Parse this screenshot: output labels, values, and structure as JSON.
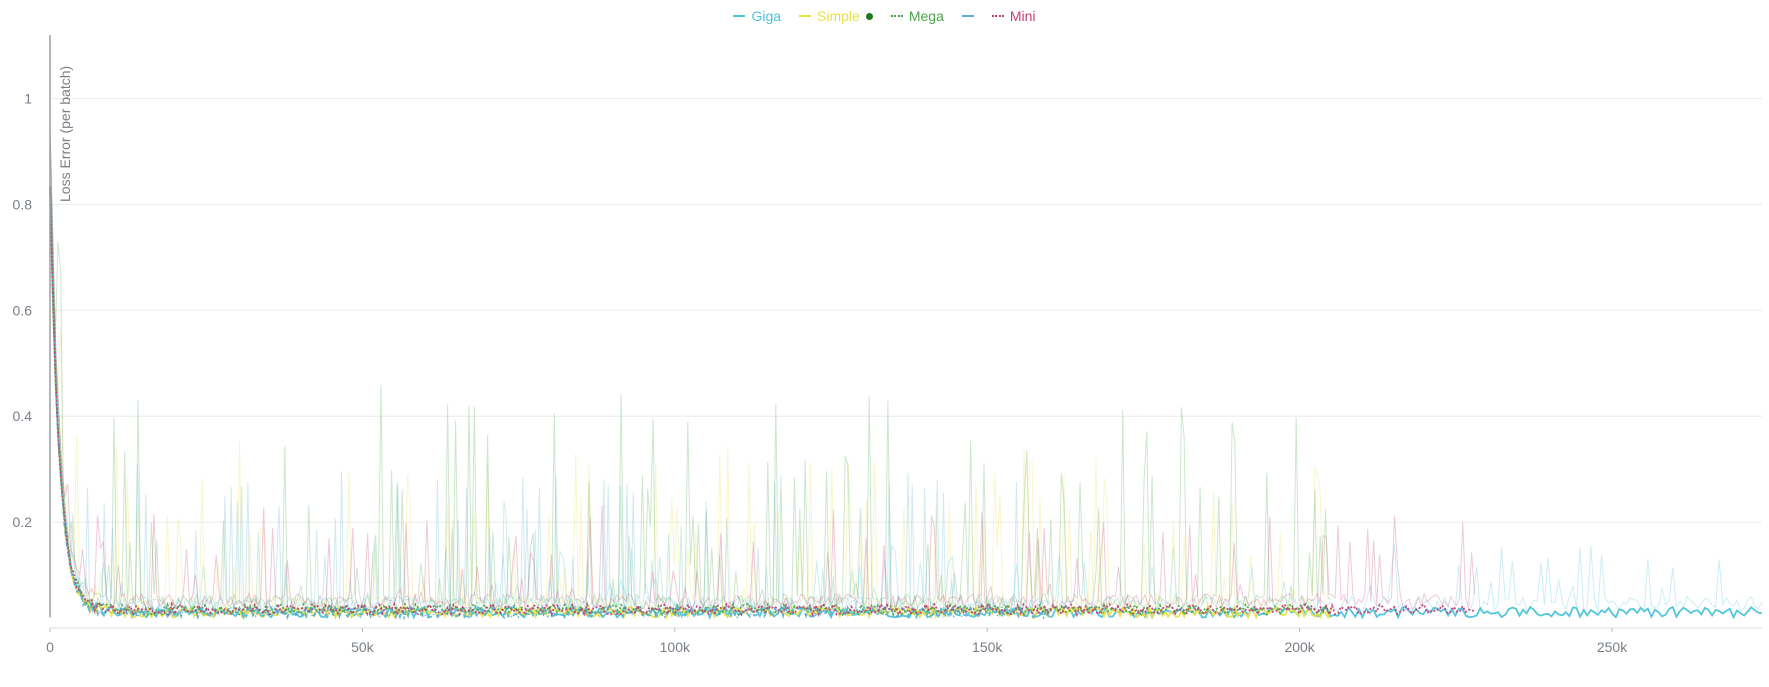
{
  "chart_data": {
    "type": "line",
    "title": "",
    "xlabel": "",
    "ylabel": "Loss Error (per batch)",
    "xlim": [
      0,
      274000
    ],
    "ylim": [
      0,
      1.12
    ],
    "x_ticks": [
      0,
      50000,
      100000,
      150000,
      200000,
      250000
    ],
    "x_tick_labels": [
      "0",
      "50k",
      "100k",
      "150k",
      "200k",
      "250k"
    ],
    "y_ticks": [
      0.2,
      0.4,
      0.6,
      0.8,
      1
    ],
    "y_tick_labels": [
      "0.2",
      "0.4",
      "0.6",
      "0.8",
      "1"
    ],
    "grid": true,
    "legend_position": "top-center",
    "series": [
      {
        "name": "Giga",
        "color": "#4cc3d9",
        "line_style": "solid",
        "x_end": 274000,
        "smoothed_level": 0.03,
        "noise_max": 0.12
      },
      {
        "name": "Simple",
        "color": "#e8e04a",
        "line_style": "solid",
        "x_end": 205000,
        "smoothed_level": 0.03,
        "noise_max": 0.3
      },
      {
        "name": "Mega",
        "color": "#4aa64a",
        "line_style": "dotted",
        "x_end": 205000,
        "smoothed_level": 0.035,
        "noise_max": 0.4
      },
      {
        "name": "",
        "color": "#5bb3c9",
        "line_style": "dash-dot",
        "x_end": 160000,
        "smoothed_level": 0.03,
        "noise_max": 0.25
      },
      {
        "name": "Mini",
        "color": "#c2407a",
        "line_style": "dotted",
        "x_end": 228000,
        "smoothed_level": 0.035,
        "noise_max": 0.18
      }
    ]
  }
}
